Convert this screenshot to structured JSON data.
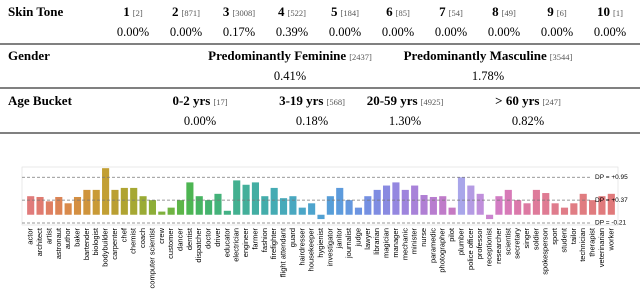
{
  "table": {
    "sections": [
      {
        "label": "Skin Tone",
        "columns": [
          {
            "name": "1",
            "count": "[2]",
            "percent": "0.00%"
          },
          {
            "name": "2",
            "count": "[871]",
            "percent": "0.00%"
          },
          {
            "name": "3",
            "count": "[3008]",
            "percent": "0.17%"
          },
          {
            "name": "4",
            "count": "[522]",
            "percent": "0.39%"
          },
          {
            "name": "5",
            "count": "[184]",
            "percent": "0.00%"
          },
          {
            "name": "6",
            "count": "[85]",
            "percent": "0.00%"
          },
          {
            "name": "7",
            "count": "[54]",
            "percent": "0.00%"
          },
          {
            "name": "8",
            "count": "[49]",
            "percent": "0.00%"
          },
          {
            "name": "9",
            "count": "[6]",
            "percent": "0.00%"
          },
          {
            "name": "10",
            "count": "[1]",
            "percent": "0.00%"
          }
        ]
      },
      {
        "label": "Gender",
        "columns": [
          {
            "name": "Predominantly Feminine",
            "count": "[2437]",
            "percent": "0.41%"
          },
          {
            "name": "Predominantly Masculine",
            "count": "[3544]",
            "percent": "1.78%"
          }
        ]
      },
      {
        "label": "Age Bucket",
        "columns": [
          {
            "name": "0-2 yrs",
            "count": "[17]",
            "percent": "0.00%"
          },
          {
            "name": "3-19 yrs",
            "count": "[568]",
            "percent": "0.18%"
          },
          {
            "name": "20-59 yrs",
            "count": "[4925]",
            "percent": "1.30%"
          },
          {
            "name": "> 60 yrs",
            "count": "[247]",
            "percent": "0.82%"
          }
        ]
      }
    ]
  },
  "chart_data": {
    "type": "bar",
    "categories": [
      "actor",
      "architect",
      "artist",
      "astronaut",
      "author",
      "baker",
      "bartender",
      "biologist",
      "bodybuilder",
      "carpenter",
      "chef",
      "chemist",
      "coach",
      "computer scientist",
      "crew",
      "customer",
      "dancer",
      "dentist",
      "dispatcher",
      "doctor",
      "driver",
      "educator",
      "electrician",
      "engineer",
      "farmer",
      "fashion",
      "firefighter",
      "flight attendant",
      "guard",
      "hairdresser",
      "housekeeper",
      "hygienist",
      "investigator",
      "janitor",
      "journalist",
      "judge",
      "lawyer",
      "librarian",
      "magician",
      "manager",
      "mechanic",
      "minister",
      "nurse",
      "paramedic",
      "photographer",
      "pilot",
      "plumber",
      "police officer",
      "professor",
      "receptionist",
      "researcher",
      "scientist",
      "secretary",
      "singer",
      "soldier",
      "spokesperson",
      "sport",
      "student",
      "tailor",
      "technician",
      "therapist",
      "veterinarian",
      "worker"
    ],
    "values": [
      0.47,
      0.45,
      0.34,
      0.45,
      0.29,
      0.45,
      0.63,
      0.63,
      1.18,
      0.63,
      0.68,
      0.68,
      0.47,
      0.37,
      0.08,
      0.18,
      0.37,
      0.82,
      0.47,
      0.37,
      0.53,
      0.1,
      0.87,
      0.76,
      0.82,
      0.47,
      0.68,
      0.42,
      0.47,
      0.18,
      0.29,
      -0.11,
      0.47,
      0.68,
      0.37,
      0.18,
      0.47,
      0.63,
      0.74,
      0.82,
      0.63,
      0.74,
      0.5,
      0.45,
      0.47,
      0.18,
      0.95,
      0.74,
      0.53,
      -0.11,
      0.47,
      0.63,
      0.37,
      0.29,
      0.63,
      0.55,
      0.29,
      0.18,
      0.29,
      0.53,
      0.37,
      0.47,
      0.53
    ],
    "colors": [
      "#e07b7b",
      "#e07b70",
      "#df7f63",
      "#dc8456",
      "#d98a4b",
      "#d48f42",
      "#cf943b",
      "#c99a36",
      "#c29f33",
      "#ba9f32",
      "#b0a432",
      "#a6a833",
      "#9aab35",
      "#8dae38",
      "#7fb13c",
      "#6fb342",
      "#5db549",
      "#4db552",
      "#47b461",
      "#45b36e",
      "#44b27a",
      "#43b185",
      "#43b090",
      "#43af9a",
      "#43aea3",
      "#44adab",
      "#45abb3",
      "#47aaba",
      "#49a8c0",
      "#4ba6c7",
      "#4ea4cd",
      "#52a1d3",
      "#579ed8",
      "#5d9bdc",
      "#6498df",
      "#6c94e1",
      "#7590e2",
      "#7f8ce2",
      "#898ae1",
      "#9487e0",
      "#9e84dd",
      "#a882d9",
      "#b07fd4",
      "#b87dcf",
      "#bf7bc9",
      "#c579c2",
      "#a9a6ea",
      "#b49be3",
      "#c08fdb",
      "#cb84cf",
      "#d27cc3",
      "#d77ab7",
      "#db79ab",
      "#dd79a2",
      "#de7a9a",
      "#df7b93",
      "#df7c8d",
      "#e07c88",
      "#e07d84",
      "#e07c80",
      "#e07b7e",
      "#e07a7c",
      "#e0797a"
    ],
    "ylim": [
      -0.26,
      1.21
    ],
    "reference_lines": [
      {
        "value": 0.95,
        "label": "DP = +0.95"
      },
      {
        "value": 0.37,
        "label": "DP = +0.37"
      },
      {
        "value": -0.21,
        "label": "DP = -0.21"
      }
    ]
  }
}
